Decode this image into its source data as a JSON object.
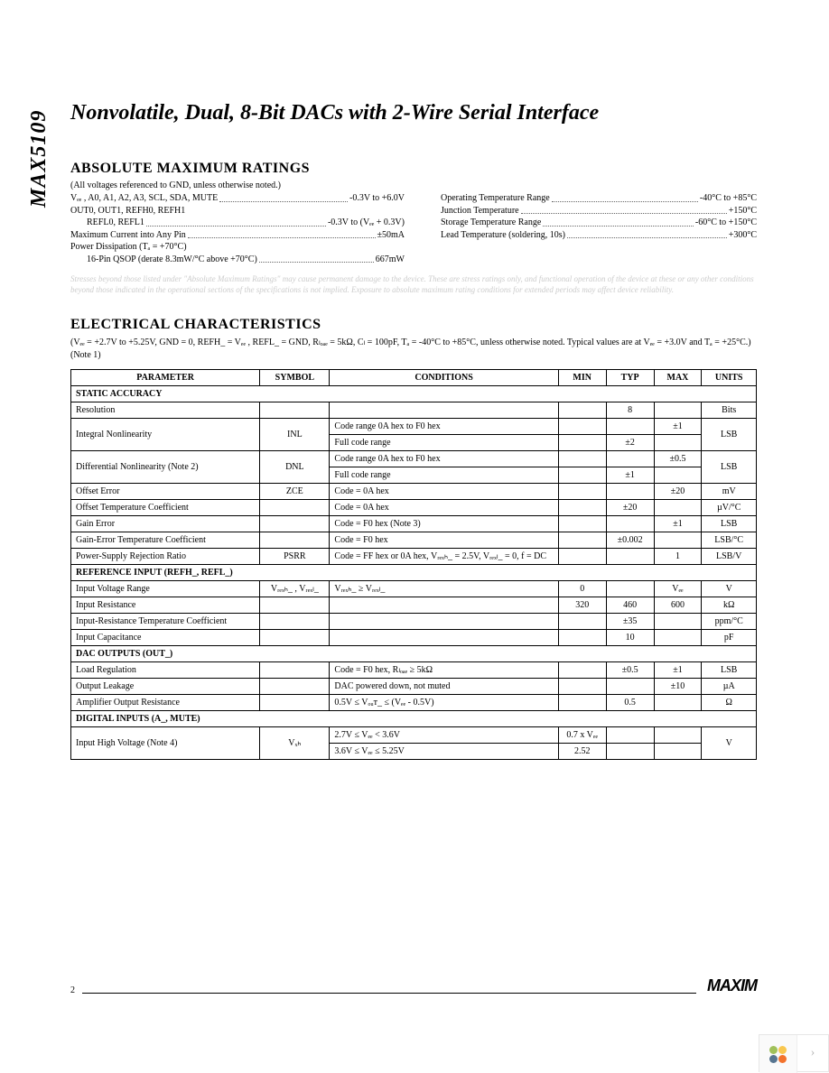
{
  "part_number": "MAX5109",
  "title": "Nonvolatile, Dual, 8-Bit DACs with 2-Wire Serial Interface",
  "amr": {
    "heading": "ABSOLUTE MAXIMUM RATINGS",
    "ref_note": "(All voltages referenced to GND, unless otherwise noted.)",
    "left": {
      "l1_label": "Vₑₑ , A0, A1, A2, A3, SCL, SDA, MUTE",
      "l1_val": "-0.3V to +6.0V",
      "l2_label": "OUT0, OUT1, REFH0, REFH1",
      "l3_label": "REFL0, REFL1",
      "l3_val": "-0.3V to (Vₑₑ  + 0.3V)",
      "l4_label": "Maximum Current into Any Pin",
      "l4_val": "±50mA",
      "l5_label": "Power Dissipation (Tₐ = +70°C)",
      "l6_label": "16-Pin QSOP (derate 8.3mW/°C above +70°C)",
      "l6_val": "667mW"
    },
    "right": {
      "r1_label": "Operating Temperature Range",
      "r1_val": "-40°C to +85°C",
      "r2_label": "Junction Temperature",
      "r2_val": "+150°C",
      "r3_label": "Storage Temperature Range",
      "r3_val": "-60°C to +150°C",
      "r4_label": "Lead Temperature (soldering, 10s)",
      "r4_val": "+300°C"
    },
    "stress": "Stresses beyond those listed under \"Absolute Maximum Ratings\" may cause permanent damage to the device. These are stress ratings only, and functional operation of the device at these or any other conditions beyond those indicated in the operational sections of the specifications is not implied. Exposure to absolute maximum rating conditions for extended periods may affect device reliability."
  },
  "ec": {
    "heading": "ELECTRICAL CHARACTERISTICS",
    "cond": "(Vₑₑ = +2.7V to +5.25V, GND = 0, REFH_ = Vₑₑ , REFL_ = GND, Rₗₒₐₑ = 5kΩ, Cₗ = 100pF, Tₐ = -40°C to +85°C, unless otherwise noted. Typical values are at Vₑₑ = +3.0V and Tₐ = +25°C.) (Note 1)",
    "head": {
      "param": "PARAMETER",
      "symbol": "SYMBOL",
      "cond": "CONDITIONS",
      "min": "MIN",
      "typ": "TYP",
      "max": "MAX",
      "units": "UNITS"
    },
    "sections": {
      "static": "STATIC ACCURACY",
      "refin": "REFERENCE INPUT (REFH_, REFL_)",
      "dacout": "DAC OUTPUTS (OUT_)",
      "digin": "DIGITAL INPUTS (A_,     MUTE)"
    },
    "rows": {
      "resolution": {
        "p": "Resolution",
        "typ": "8",
        "u": "Bits"
      },
      "inl_a": {
        "p": "Integral Nonlinearity",
        "s": "INL",
        "c": "Code range 0A hex to F0 hex",
        "max": "±1",
        "u": "LSB"
      },
      "inl_b": {
        "c": "Full code range",
        "typ": "±2"
      },
      "dnl_a": {
        "p": "Differential Nonlinearity (Note 2)",
        "s": "DNL",
        "c": "Code range 0A hex to F0 hex",
        "max": "±0.5",
        "u": "LSB"
      },
      "dnl_b": {
        "c": "Full code range",
        "typ": "±1"
      },
      "offerr": {
        "p": "Offset Error",
        "s": "ZCE",
        "c": "Code = 0A hex",
        "max": "±20",
        "u": "mV"
      },
      "offtc": {
        "p": "Offset Temperature Coefficient",
        "c": "Code = 0A hex",
        "typ": "±20",
        "u": "µV/°C"
      },
      "gainerr": {
        "p": "Gain Error",
        "c": "Code = F0 hex (Note 3)",
        "max": "±1",
        "u": "LSB"
      },
      "gaintc": {
        "p": "Gain-Error Temperature Coefficient",
        "c": "Code = F0 hex",
        "typ": "±0.002",
        "u": "LSB/°C"
      },
      "psrr": {
        "p": "Power-Supply Rejection Ratio",
        "s": "PSRR",
        "c": "Code = FF hex or 0A hex, Vᵣₑₓₕ_ = 2.5V, Vᵣₑₓₗ_ = 0, f = DC",
        "max": "1",
        "u": "LSB/V"
      },
      "ivr": {
        "p": "Input Voltage Range",
        "s": "Vᵣₑₓₕ_ , Vᵣₑₓₗ_",
        "c": "Vᵣₑₓₕ_  ≥ Vᵣₑₓₗ_",
        "min": "0",
        "max": "Vₑₑ",
        "u": "V"
      },
      "ires": {
        "p": "Input Resistance",
        "min": "320",
        "typ": "460",
        "max": "600",
        "u": "kΩ"
      },
      "irtc": {
        "p": "Input-Resistance Temperature Coefficient",
        "typ": "±35",
        "u": "ppm/°C"
      },
      "icap": {
        "p": "Input Capacitance",
        "typ": "10",
        "u": "pF"
      },
      "loadreg": {
        "p": "Load Regulation",
        "c": "Code = F0 hex, Rₗₒₐₑ ≥ 5kΩ",
        "typ": "±0.5",
        "max": "±1",
        "u": "LSB"
      },
      "outlk": {
        "p": "Output Leakage",
        "c": "DAC powered down, not muted",
        "max": "±10",
        "u": "µA"
      },
      "ampout": {
        "p": "Amplifier Output Resistance",
        "c": "0.5V ≤ Vₒᵤᴛ_ ≤ (Vₑₑ  - 0.5V)",
        "typ": "0.5",
        "u": "Ω"
      },
      "vih_a": {
        "p": "Input High Voltage (Note 4)",
        "s": "Vₓₕ",
        "c": "2.7V ≤ Vₑₑ  < 3.6V",
        "min": "0.7 x Vₑₑ",
        "u": "V"
      },
      "vih_b": {
        "c": "3.6V ≤ Vₑₑ  ≤ 5.25V",
        "min": "2.52"
      }
    }
  },
  "footer": {
    "page": "2",
    "brand": "MAXIM"
  },
  "colors": {
    "text": "#000000",
    "bg": "#ffffff",
    "faint": "#cccccc",
    "petal1": "#a0c15a",
    "petal2": "#f9c74f",
    "petal3": "#f3722c",
    "petal4": "#577590"
  }
}
